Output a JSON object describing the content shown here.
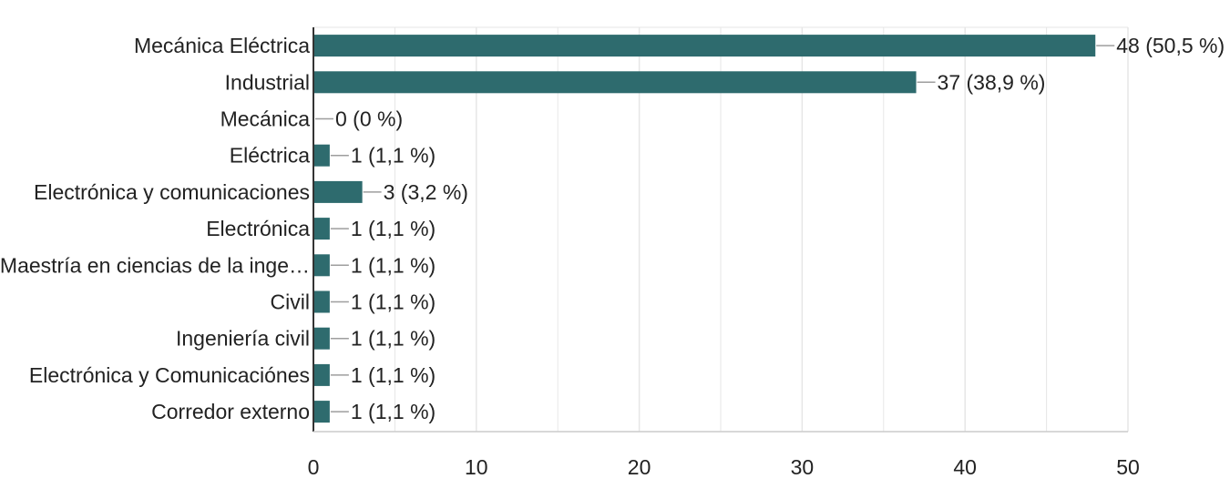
{
  "chart_data": {
    "type": "bar",
    "orientation": "horizontal",
    "categories": [
      "Mecánica Eléctrica",
      "Industrial",
      "Mecánica",
      "Eléctrica",
      "Electrónica y comunicaciones",
      "Electrónica",
      "Maestría en ciencias de la inge…",
      "Civil",
      "Ingeniería civil",
      "Electrónica y Comunicaciónes",
      "Corredor externo"
    ],
    "values": [
      48,
      37,
      0,
      1,
      3,
      1,
      1,
      1,
      1,
      1,
      1
    ],
    "data_labels": [
      "48 (50,5 %)",
      "37 (38,9 %)",
      "0 (0 %)",
      "1 (1,1 %)",
      "3 (3,2 %)",
      "1 (1,1 %)",
      "1 (1,1 %)",
      "1 (1,1 %)",
      "1 (1,1 %)",
      "1 (1,1 %)",
      "1 (1,1 %)"
    ],
    "xlim": [
      0,
      50
    ],
    "x_ticks": [
      0,
      10,
      20,
      30,
      40,
      50
    ],
    "grid": true,
    "bar_color": "#2e6b6e",
    "grid_color": "#e6e6e6",
    "axis_color": "#333333",
    "leader_color": "#9e9e9e"
  }
}
